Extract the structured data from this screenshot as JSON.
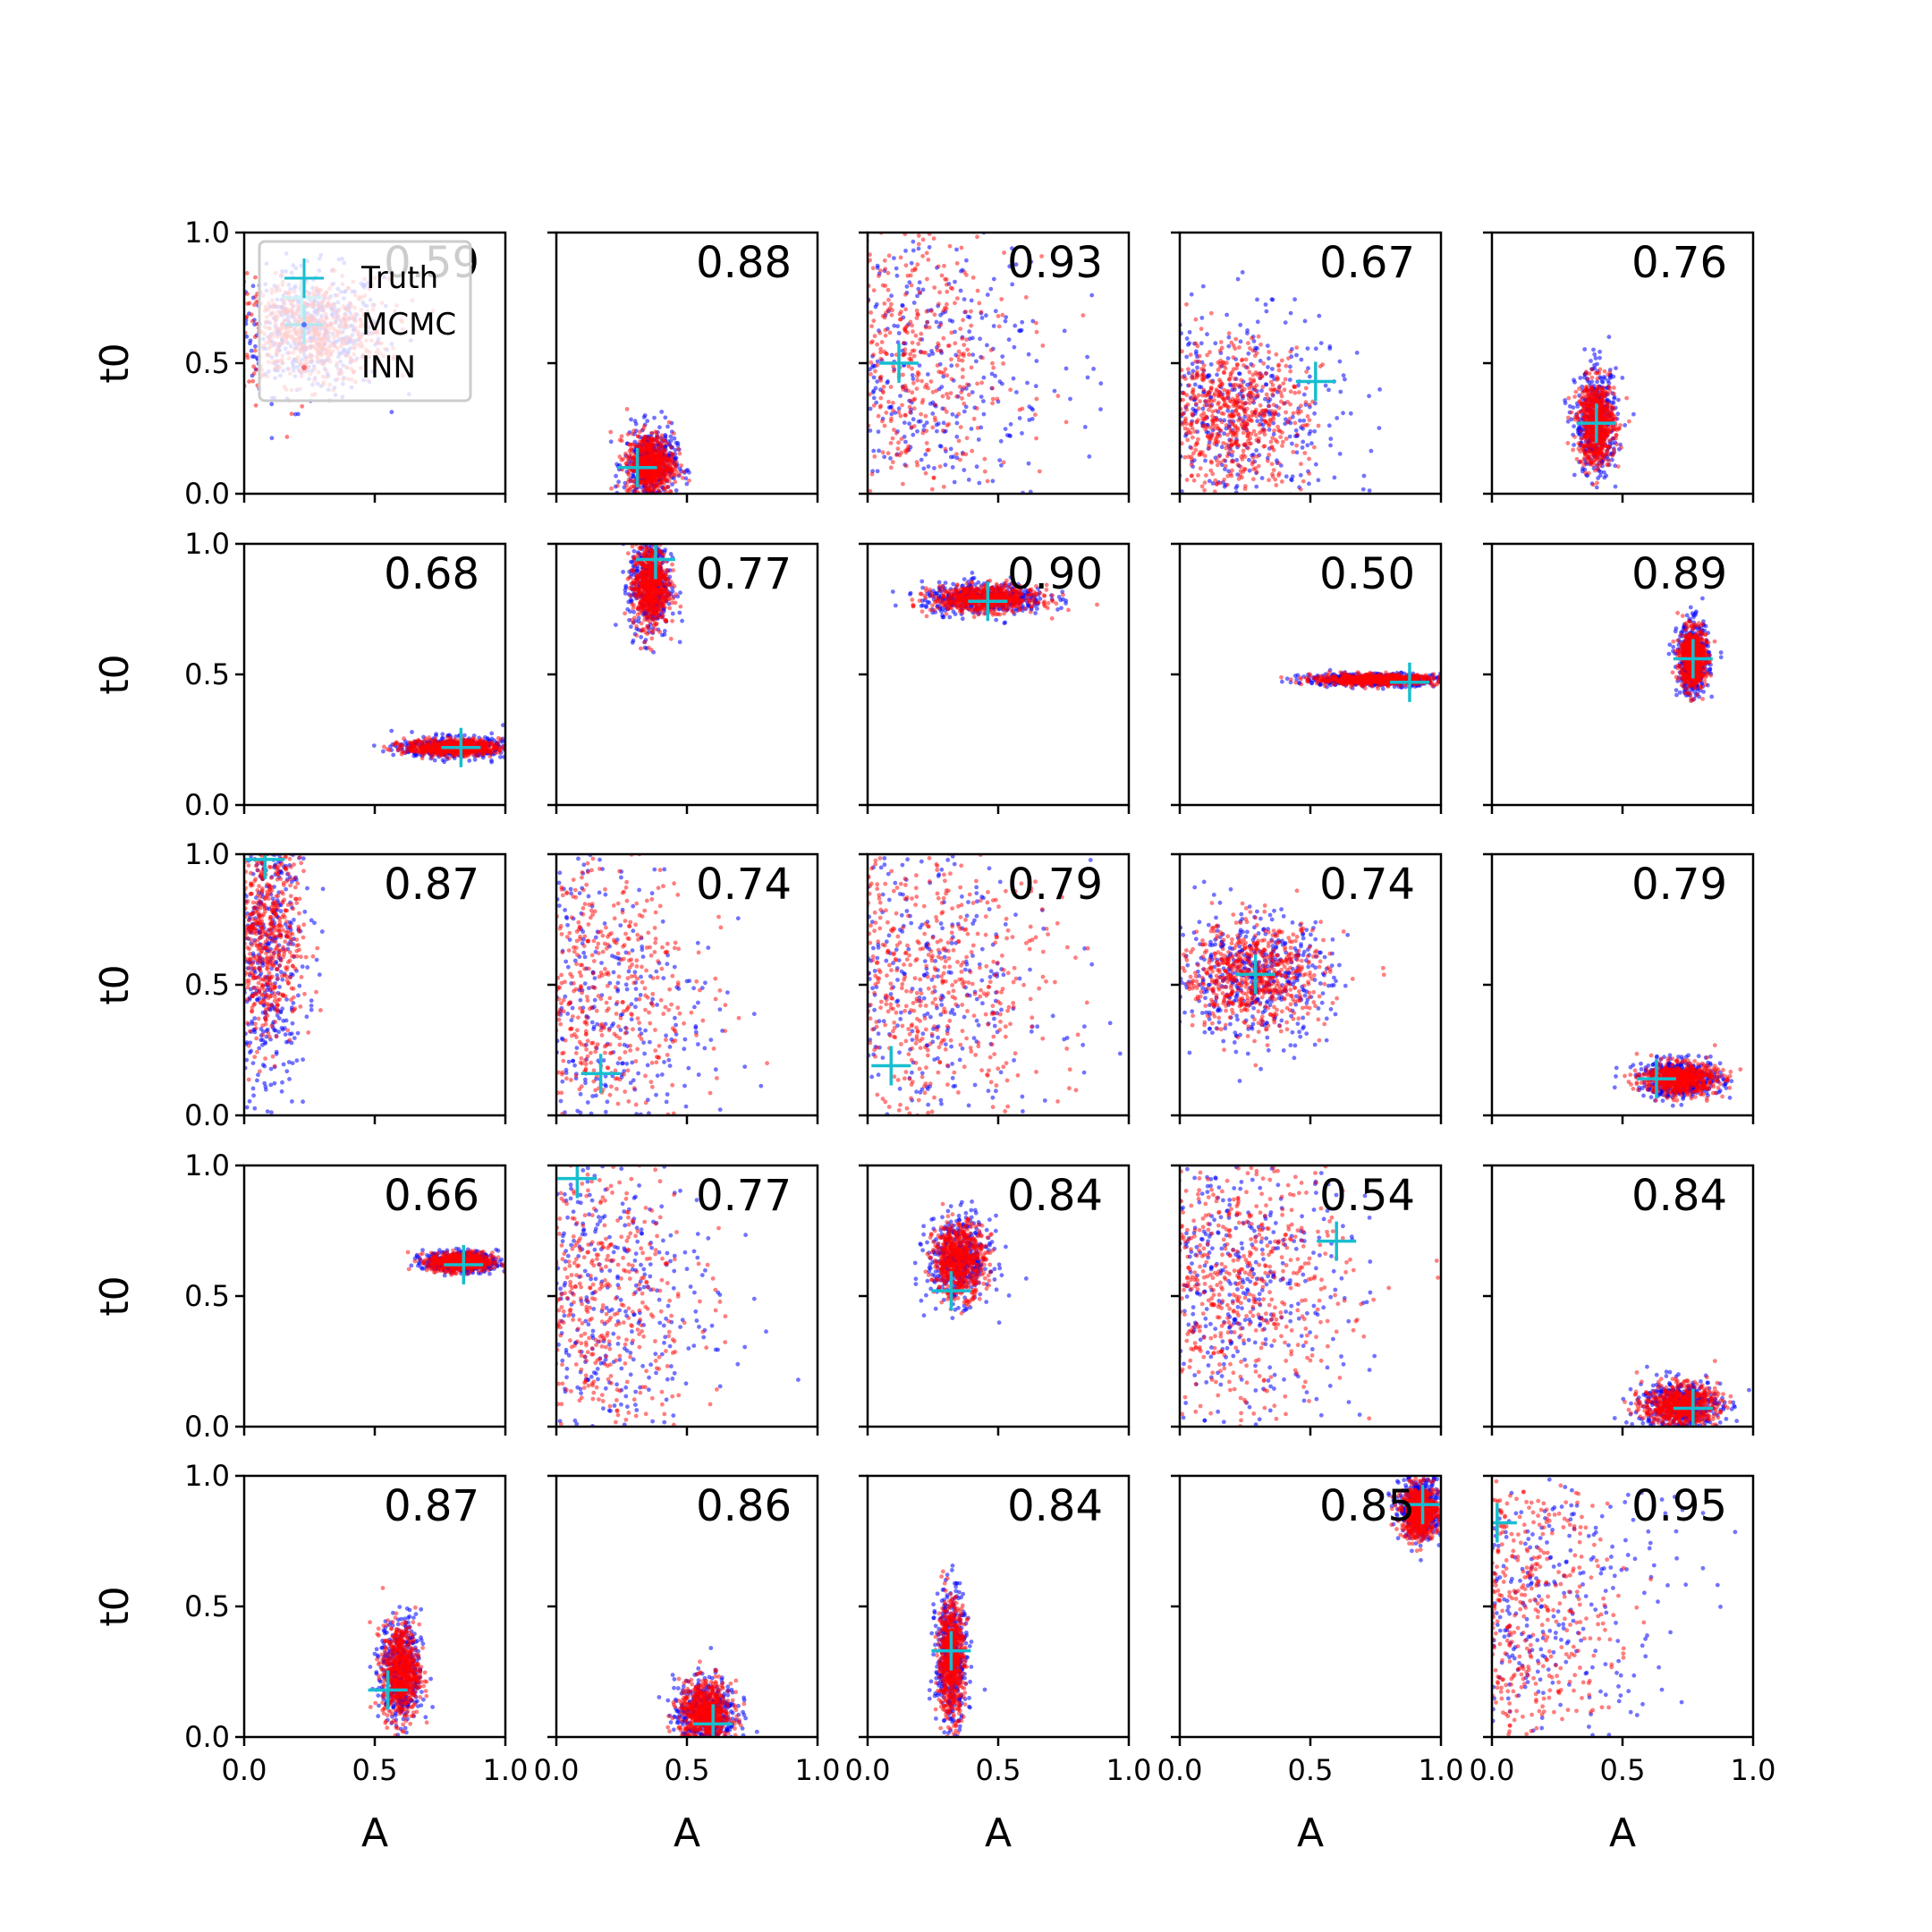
{
  "chart_data": {
    "type": "scatter",
    "grid": false,
    "rows": 5,
    "cols": 5,
    "xlabel": "A",
    "ylabel": "t0",
    "xlim": [
      0,
      1
    ],
    "ylim": [
      0,
      1
    ],
    "ticks": [
      "0.0",
      "0.5",
      "1.0"
    ],
    "legend": {
      "placement": "top-left of first panel",
      "entries": [
        "Truth",
        "MCMC",
        "INN"
      ]
    },
    "colors": {
      "truth": "#17becf",
      "mcmc": "#0000ff",
      "inn": "#ff0000"
    },
    "panels": [
      {
        "score": "0.59",
        "truth": [
          0.22,
          0.75
        ],
        "mcmc": {
          "center": [
            0.25,
            0.62
          ],
          "spread": [
            0.14,
            0.12
          ]
        },
        "inn": {
          "center": [
            0.25,
            0.62
          ],
          "spread": [
            0.15,
            0.1
          ]
        }
      },
      {
        "score": "0.88",
        "truth": [
          0.31,
          0.1
        ],
        "mcmc": {
          "center": [
            0.36,
            0.11
          ],
          "spread": [
            0.05,
            0.07
          ]
        },
        "inn": {
          "center": [
            0.36,
            0.11
          ],
          "spread": [
            0.045,
            0.06
          ]
        }
      },
      {
        "score": "0.93",
        "truth": [
          0.12,
          0.5
        ],
        "mcmc": {
          "center": [
            0.12,
            0.5
          ],
          "spread": [
            0.3,
            0.3
          ]
        },
        "inn": {
          "center": [
            0.08,
            0.5
          ],
          "spread": [
            0.25,
            0.3
          ]
        }
      },
      {
        "score": "0.67",
        "truth": [
          0.52,
          0.43
        ],
        "mcmc": {
          "center": [
            0.2,
            0.3
          ],
          "spread": [
            0.22,
            0.2
          ]
        },
        "inn": {
          "center": [
            0.2,
            0.3
          ],
          "spread": [
            0.14,
            0.14
          ]
        }
      },
      {
        "score": "0.76",
        "truth": [
          0.4,
          0.27
        ],
        "mcmc": {
          "center": [
            0.4,
            0.27
          ],
          "spread": [
            0.04,
            0.1
          ]
        },
        "inn": {
          "center": [
            0.4,
            0.27
          ],
          "spread": [
            0.035,
            0.08
          ]
        }
      },
      {
        "score": "0.68",
        "truth": [
          0.83,
          0.22
        ],
        "mcmc": {
          "center": [
            0.8,
            0.22
          ],
          "spread": [
            0.1,
            0.02
          ]
        },
        "inn": {
          "center": [
            0.8,
            0.22
          ],
          "spread": [
            0.09,
            0.015
          ]
        }
      },
      {
        "score": "0.77",
        "truth": [
          0.38,
          0.94
        ],
        "mcmc": {
          "center": [
            0.36,
            0.84
          ],
          "spread": [
            0.04,
            0.1
          ]
        },
        "inn": {
          "center": [
            0.36,
            0.84
          ],
          "spread": [
            0.035,
            0.08
          ]
        }
      },
      {
        "score": "0.90",
        "truth": [
          0.46,
          0.78
        ],
        "mcmc": {
          "center": [
            0.45,
            0.79
          ],
          "spread": [
            0.12,
            0.03
          ]
        },
        "inn": {
          "center": [
            0.45,
            0.79
          ],
          "spread": [
            0.1,
            0.025
          ]
        }
      },
      {
        "score": "0.50",
        "truth": [
          0.88,
          0.47
        ],
        "mcmc": {
          "center": [
            0.75,
            0.48
          ],
          "spread": [
            0.14,
            0.012
          ]
        },
        "inn": {
          "center": [
            0.75,
            0.48
          ],
          "spread": [
            0.12,
            0.01
          ]
        }
      },
      {
        "score": "0.89",
        "truth": [
          0.77,
          0.56
        ],
        "mcmc": {
          "center": [
            0.77,
            0.56
          ],
          "spread": [
            0.03,
            0.07
          ]
        },
        "inn": {
          "center": [
            0.77,
            0.56
          ],
          "spread": [
            0.025,
            0.055
          ]
        }
      },
      {
        "score": "0.87",
        "truth": [
          0.08,
          0.98
        ],
        "mcmc": {
          "center": [
            0.08,
            0.6
          ],
          "spread": [
            0.08,
            0.3
          ]
        },
        "inn": {
          "center": [
            0.08,
            0.7
          ],
          "spread": [
            0.07,
            0.22
          ]
        }
      },
      {
        "score": "0.74",
        "truth": [
          0.17,
          0.16
        ],
        "mcmc": {
          "center": [
            0.1,
            0.4
          ],
          "spread": [
            0.25,
            0.35
          ]
        },
        "inn": {
          "center": [
            0.08,
            0.5
          ],
          "spread": [
            0.22,
            0.3
          ]
        }
      },
      {
        "score": "0.79",
        "truth": [
          0.09,
          0.19
        ],
        "mcmc": {
          "center": [
            0.15,
            0.5
          ],
          "spread": [
            0.3,
            0.35
          ]
        },
        "inn": {
          "center": [
            0.2,
            0.5
          ],
          "spread": [
            0.25,
            0.28
          ]
        }
      },
      {
        "score": "0.74",
        "truth": [
          0.29,
          0.54
        ],
        "mcmc": {
          "center": [
            0.28,
            0.53
          ],
          "spread": [
            0.15,
            0.12
          ]
        },
        "inn": {
          "center": [
            0.28,
            0.53
          ],
          "spread": [
            0.14,
            0.1
          ]
        }
      },
      {
        "score": "0.79",
        "truth": [
          0.63,
          0.14
        ],
        "mcmc": {
          "center": [
            0.72,
            0.14
          ],
          "spread": [
            0.08,
            0.035
          ]
        },
        "inn": {
          "center": [
            0.72,
            0.14
          ],
          "spread": [
            0.07,
            0.03
          ]
        }
      },
      {
        "score": "0.66",
        "truth": [
          0.84,
          0.62
        ],
        "mcmc": {
          "center": [
            0.83,
            0.63
          ],
          "spread": [
            0.07,
            0.02
          ]
        },
        "inn": {
          "center": [
            0.83,
            0.63
          ],
          "spread": [
            0.06,
            0.018
          ]
        }
      },
      {
        "score": "0.77",
        "truth": [
          0.08,
          0.95
        ],
        "mcmc": {
          "center": [
            0.1,
            0.5
          ],
          "spread": [
            0.25,
            0.32
          ]
        },
        "inn": {
          "center": [
            0.08,
            0.5
          ],
          "spread": [
            0.22,
            0.3
          ]
        }
      },
      {
        "score": "0.84",
        "truth": [
          0.32,
          0.52
        ],
        "mcmc": {
          "center": [
            0.35,
            0.64
          ],
          "spread": [
            0.06,
            0.08
          ]
        },
        "inn": {
          "center": [
            0.35,
            0.64
          ],
          "spread": [
            0.05,
            0.07
          ]
        }
      },
      {
        "score": "0.54",
        "truth": [
          0.6,
          0.71
        ],
        "mcmc": {
          "center": [
            0.2,
            0.55
          ],
          "spread": [
            0.25,
            0.28
          ]
        },
        "inn": {
          "center": [
            0.2,
            0.55
          ],
          "spread": [
            0.22,
            0.25
          ]
        }
      },
      {
        "score": "0.84",
        "truth": [
          0.77,
          0.07
        ],
        "mcmc": {
          "center": [
            0.72,
            0.08
          ],
          "spread": [
            0.08,
            0.05
          ]
        },
        "inn": {
          "center": [
            0.72,
            0.08
          ],
          "spread": [
            0.07,
            0.04
          ]
        }
      },
      {
        "score": "0.87",
        "truth": [
          0.55,
          0.18
        ],
        "mcmc": {
          "center": [
            0.6,
            0.25
          ],
          "spread": [
            0.04,
            0.1
          ]
        },
        "inn": {
          "center": [
            0.6,
            0.25
          ],
          "spread": [
            0.035,
            0.09
          ]
        }
      },
      {
        "score": "0.86",
        "truth": [
          0.6,
          0.05
        ],
        "mcmc": {
          "center": [
            0.57,
            0.09
          ],
          "spread": [
            0.06,
            0.07
          ]
        },
        "inn": {
          "center": [
            0.57,
            0.09
          ],
          "spread": [
            0.05,
            0.06
          ]
        }
      },
      {
        "score": "0.84",
        "truth": [
          0.32,
          0.33
        ],
        "mcmc": {
          "center": [
            0.32,
            0.3
          ],
          "spread": [
            0.03,
            0.13
          ]
        },
        "inn": {
          "center": [
            0.32,
            0.3
          ],
          "spread": [
            0.025,
            0.11
          ]
        }
      },
      {
        "score": "0.85",
        "truth": [
          0.93,
          0.89
        ],
        "mcmc": {
          "center": [
            0.92,
            0.88
          ],
          "spread": [
            0.04,
            0.06
          ]
        },
        "inn": {
          "center": [
            0.92,
            0.86
          ],
          "spread": [
            0.035,
            0.05
          ]
        }
      },
      {
        "score": "0.95",
        "truth": [
          0.02,
          0.82
        ],
        "mcmc": {
          "center": [
            0.1,
            0.5
          ],
          "spread": [
            0.3,
            0.32
          ]
        },
        "inn": {
          "center": [
            0.06,
            0.5
          ],
          "spread": [
            0.2,
            0.3
          ]
        }
      }
    ]
  }
}
